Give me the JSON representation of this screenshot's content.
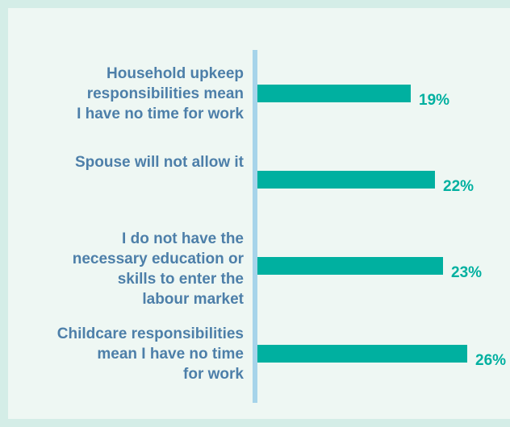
{
  "chart_data": {
    "type": "bar",
    "orientation": "horizontal",
    "categories": [
      [
        "Household upkeep",
        "responsibilities mean",
        "I have no time for work"
      ],
      [
        "Spouse will not allow it"
      ],
      [
        "I do not have the",
        "necessary education or",
        "skills to enter the",
        "labour market"
      ],
      [
        "Childcare responsibilities",
        "mean I have no time",
        "for work"
      ]
    ],
    "values": [
      19,
      22,
      23,
      26
    ],
    "value_labels": [
      "19%",
      "22%",
      "23%",
      "26%"
    ],
    "xlim": [
      0,
      26
    ],
    "grid": false,
    "colors": {
      "bar": "#00b0a0",
      "value_label": "#00b0a0",
      "category_label": "#4d7fa9",
      "axis": "#a6d4ea",
      "panel": "#eef7f3",
      "border": "#d4ede7"
    }
  }
}
